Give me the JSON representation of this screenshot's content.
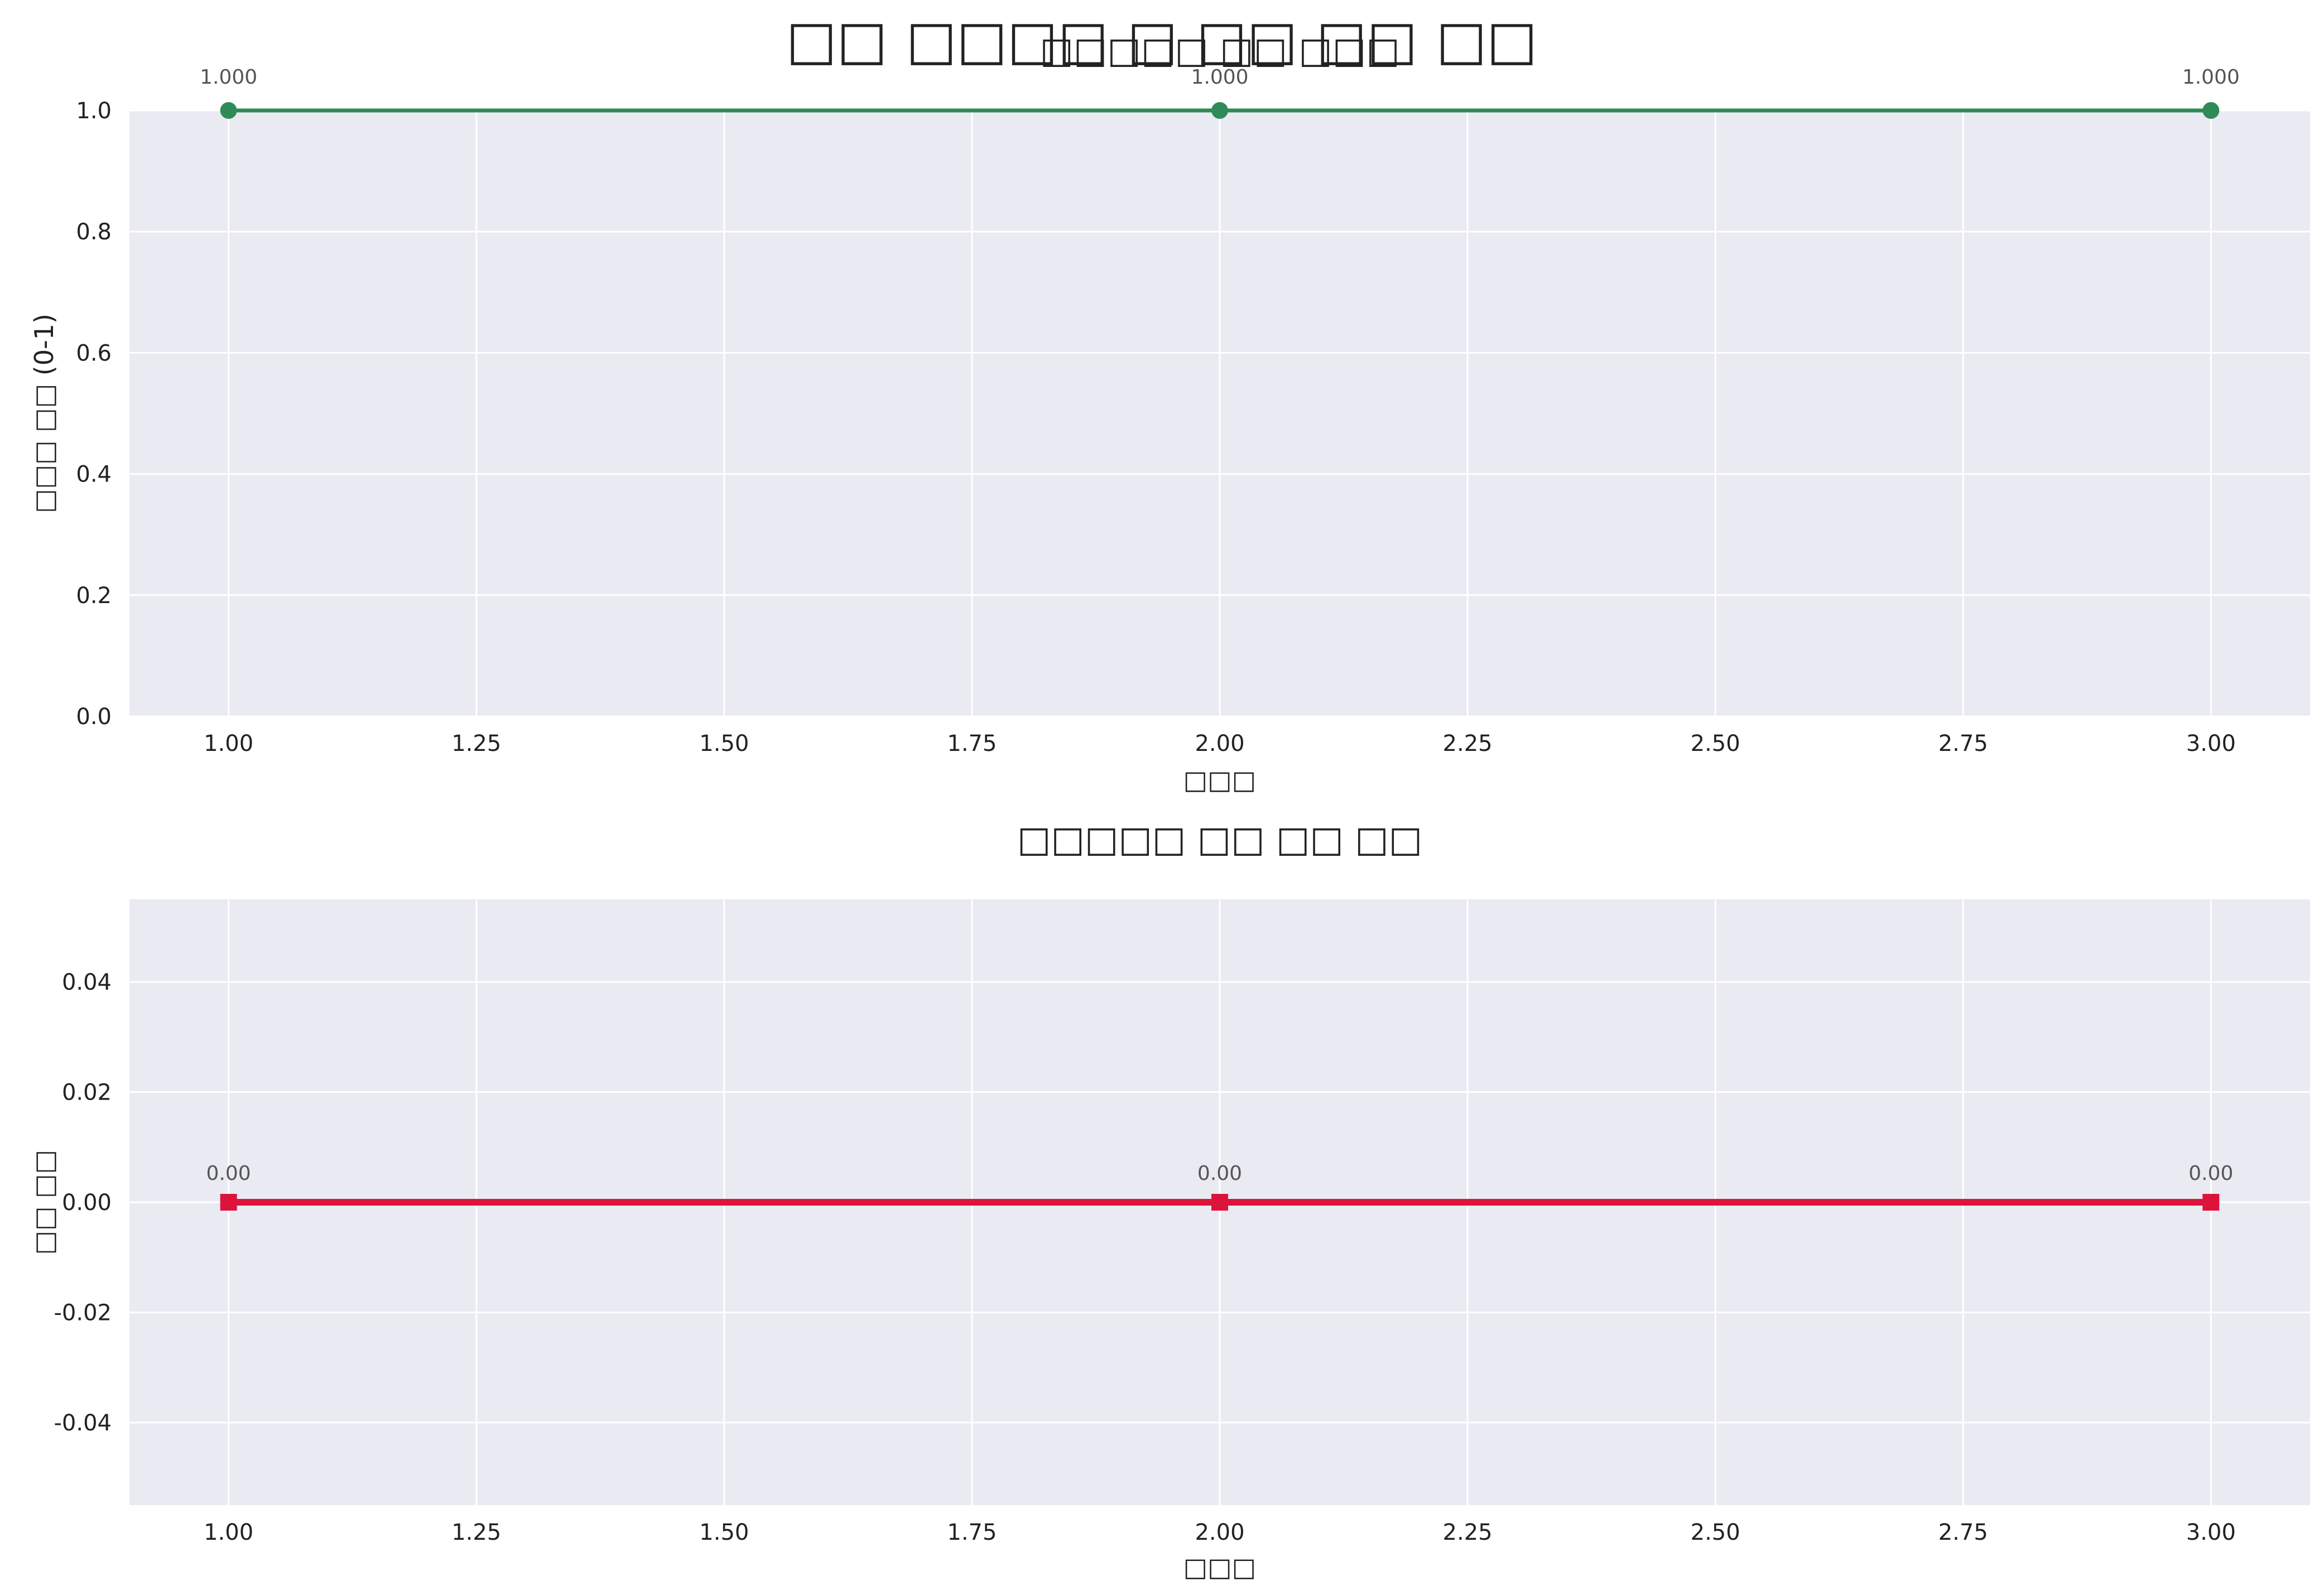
{
  "figure": {
    "suptitle": "□□ □□□□ □ □□ □□ □□",
    "background": "#ffffff"
  },
  "chart_data": [
    {
      "type": "line",
      "title": "□□□□□ □□ □□□",
      "xlabel": "□□□",
      "ylabel": "□□□ □□ (0-1)",
      "x": [
        1,
        2,
        3
      ],
      "series": [
        {
          "values": [
            1.0,
            1.0,
            1.0
          ],
          "color": "#2e8b57",
          "marker": "circle",
          "labels": [
            "1.000",
            "1.000",
            "1.000"
          ]
        }
      ],
      "xlim": [
        0.9,
        3.1
      ],
      "ylim": [
        0.0,
        1.0
      ],
      "xticks": [
        1.0,
        1.25,
        1.5,
        1.75,
        2.0,
        2.25,
        2.5,
        2.75,
        3.0
      ],
      "xtick_labels": [
        "1.00",
        "1.25",
        "1.50",
        "1.75",
        "2.00",
        "2.25",
        "2.50",
        "2.75",
        "3.00"
      ],
      "yticks": [
        0.0,
        0.2,
        0.4,
        0.6,
        0.8,
        1.0
      ],
      "ytick_labels": [
        "0.0",
        "0.2",
        "0.4",
        "0.6",
        "0.8",
        "1.0"
      ],
      "grid": true,
      "panel_color": "#eaeaf2"
    },
    {
      "type": "line",
      "title": "□□□□□ □□ □□ □□",
      "xlabel": "□□□",
      "ylabel": "□□ □□",
      "x": [
        1,
        2,
        3
      ],
      "series": [
        {
          "values": [
            0.0,
            0.0,
            0.0
          ],
          "color": "#dc143c",
          "marker": "square",
          "labels": [
            "0.00",
            "0.00",
            "0.00"
          ]
        }
      ],
      "xlim": [
        0.9,
        3.1
      ],
      "ylim": [
        -0.055,
        0.055
      ],
      "xticks": [
        1.0,
        1.25,
        1.5,
        1.75,
        2.0,
        2.25,
        2.5,
        2.75,
        3.0
      ],
      "xtick_labels": [
        "1.00",
        "1.25",
        "1.50",
        "1.75",
        "2.00",
        "2.25",
        "2.50",
        "2.75",
        "3.00"
      ],
      "yticks": [
        -0.04,
        -0.02,
        0.0,
        0.02,
        0.04
      ],
      "ytick_labels": [
        "-0.04",
        "-0.02",
        "0.00",
        "0.02",
        "0.04"
      ],
      "grid": true,
      "panel_color": "#eaeaf2"
    }
  ]
}
